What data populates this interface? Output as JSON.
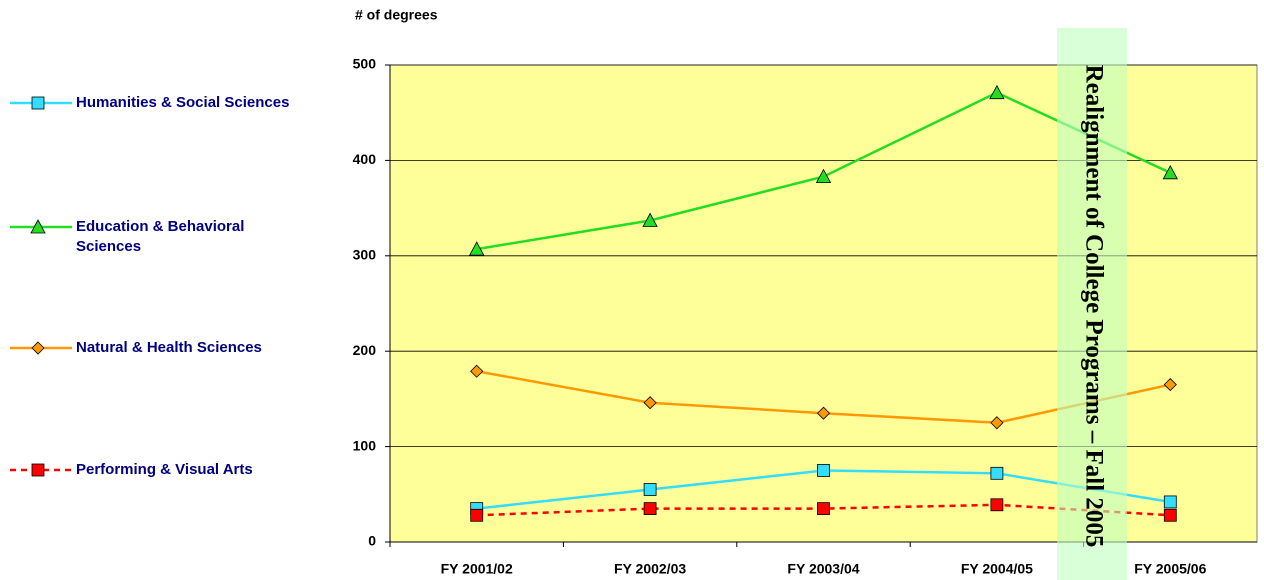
{
  "chart_data": {
    "type": "line",
    "y_label": "# of degrees",
    "annotation": "Realignment of College Programs – Fall 2005",
    "categories": [
      "FY 2001/02",
      "FY 2002/03",
      "FY 2003/04",
      "FY 2004/05",
      "FY 2005/06"
    ],
    "series": [
      {
        "name": "Humanities & Social Sciences",
        "color": "#33ddff",
        "marker": "square",
        "dash": false,
        "values": [
          35,
          55,
          75,
          72,
          42
        ]
      },
      {
        "name": "Education & Behavioral Sciences",
        "color": "#22dd22",
        "marker": "triangle",
        "dash": false,
        "values": [
          307,
          337,
          383,
          471,
          387
        ]
      },
      {
        "name": "Natural & Health Sciences",
        "color": "#ff9900",
        "marker": "diamond",
        "dash": false,
        "values": [
          179,
          146,
          135,
          125,
          165
        ]
      },
      {
        "name": "Performing & Visual Arts",
        "color": "#ff0000",
        "marker": "square",
        "dash": true,
        "values": [
          28,
          35,
          35,
          39,
          28
        ]
      }
    ],
    "ylim": [
      0,
      500
    ],
    "yticks": [
      0,
      100,
      200,
      300,
      400,
      500
    ],
    "grid": true,
    "plot_background": "#ffff99"
  }
}
